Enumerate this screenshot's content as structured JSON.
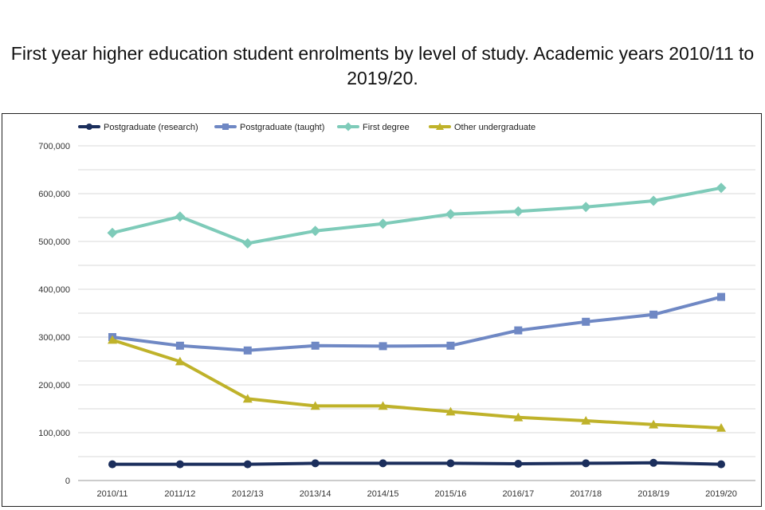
{
  "title": "First year higher education student enrolments by level of study. Academic years 2010/11 to 2019/20.",
  "chart_data": {
    "type": "line",
    "title": "First year higher education student enrolments by level of study. Academic years 2010/11 to 2019/20.",
    "xlabel": "",
    "ylabel": "",
    "categories": [
      "2010/11",
      "2011/12",
      "2012/13",
      "2013/14",
      "2014/15",
      "2015/16",
      "2016/17",
      "2017/18",
      "2018/19",
      "2019/20"
    ],
    "ylim": [
      0,
      700000
    ],
    "yticks": [
      0,
      100000,
      200000,
      300000,
      400000,
      500000,
      600000,
      700000
    ],
    "ytick_labels": [
      "0",
      "100,000",
      "200,000",
      "300,000",
      "400,000",
      "500,000",
      "600,000",
      "700,000"
    ],
    "grid": true,
    "legend_position": "top-left",
    "series": [
      {
        "name": "Postgraduate (research)",
        "color": "#1b2e5c",
        "marker": "circle",
        "values": [
          34000,
          34000,
          34000,
          36000,
          36000,
          36000,
          35000,
          36000,
          37000,
          34000
        ]
      },
      {
        "name": "Postgraduate (taught)",
        "color": "#6f88c4",
        "marker": "square",
        "values": [
          300000,
          282000,
          272000,
          282000,
          281000,
          282000,
          314000,
          332000,
          347000,
          384000
        ]
      },
      {
        "name": "First degree",
        "color": "#7ecbb9",
        "marker": "diamond",
        "values": [
          518000,
          552000,
          496000,
          522000,
          537000,
          557000,
          563000,
          572000,
          585000,
          612000
        ]
      },
      {
        "name": "Other undergraduate",
        "color": "#bfb22a",
        "marker": "triangle",
        "values": [
          294000,
          249000,
          171000,
          156000,
          156000,
          144000,
          132000,
          125000,
          117000,
          110000
        ]
      }
    ]
  }
}
